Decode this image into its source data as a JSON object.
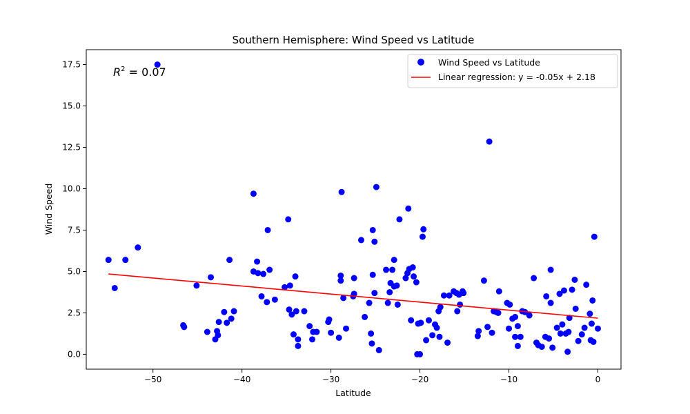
{
  "chart_data": {
    "type": "scatter",
    "title": "Southern Hemisphere: Wind Speed vs Latitude",
    "xlabel": "Latitude",
    "ylabel": "Wind Speed",
    "xlim": [
      -57.5,
      2.6
    ],
    "ylim": [
      -0.9,
      18.4
    ],
    "xticks": [
      -50,
      -40,
      -30,
      -20,
      -10,
      0
    ],
    "xtick_labels": [
      "−50",
      "−40",
      "−30",
      "−20",
      "−10",
      "0"
    ],
    "yticks": [
      0,
      2.5,
      5,
      7.5,
      10,
      12.5,
      15,
      17.5
    ],
    "ytick_labels": [
      "0.0",
      "2.5",
      "5.0",
      "7.5",
      "10.0",
      "12.5",
      "15.0",
      "17.5"
    ],
    "grid": false,
    "legend_position": "top-right",
    "annotation": {
      "prefix": "R",
      "superscript": "2",
      "suffix": " = 0.07"
    },
    "colors": {
      "points": "#0000ff",
      "regression": "#ff0000"
    },
    "series": [
      {
        "name": "Wind Speed vs Latitude",
        "type": "scatter",
        "points": [
          [
            -55.0,
            5.7
          ],
          [
            -54.3,
            4.0
          ],
          [
            -53.1,
            5.7
          ],
          [
            -51.7,
            6.45
          ],
          [
            -49.5,
            17.5
          ],
          [
            -46.6,
            1.75
          ],
          [
            -46.5,
            1.65
          ],
          [
            -45.1,
            4.15
          ],
          [
            -43.9,
            1.35
          ],
          [
            -43.5,
            4.65
          ],
          [
            -43.0,
            0.9
          ],
          [
            -42.8,
            1.4
          ],
          [
            -42.7,
            1.15
          ],
          [
            -42.6,
            1.95
          ],
          [
            -42.0,
            2.55
          ],
          [
            -41.7,
            1.9
          ],
          [
            -41.4,
            5.7
          ],
          [
            -41.2,
            2.15
          ],
          [
            -40.9,
            2.6
          ],
          [
            -38.7,
            9.7
          ],
          [
            -38.7,
            5.0
          ],
          [
            -38.3,
            5.6
          ],
          [
            -38.2,
            4.9
          ],
          [
            -37.8,
            3.5
          ],
          [
            -37.6,
            4.85
          ],
          [
            -37.2,
            3.15
          ],
          [
            -37.1,
            7.5
          ],
          [
            -36.9,
            5.1
          ],
          [
            -36.3,
            3.3
          ],
          [
            -35.2,
            4.05
          ],
          [
            -34.8,
            8.15
          ],
          [
            -34.7,
            2.7
          ],
          [
            -34.6,
            4.15
          ],
          [
            -34.4,
            2.4
          ],
          [
            -34.2,
            1.2
          ],
          [
            -34.0,
            4.7
          ],
          [
            -33.9,
            2.6
          ],
          [
            -33.7,
            0.9
          ],
          [
            -33.7,
            0.5
          ],
          [
            -33.0,
            2.6
          ],
          [
            -32.4,
            1.7
          ],
          [
            -32.1,
            0.9
          ],
          [
            -32.0,
            1.35
          ],
          [
            -31.6,
            1.35
          ],
          [
            -30.3,
            1.95
          ],
          [
            -30.2,
            2.1
          ],
          [
            -30.0,
            1.3
          ],
          [
            -29.1,
            1.0
          ],
          [
            -28.9,
            4.75
          ],
          [
            -28.9,
            4.45
          ],
          [
            -28.8,
            9.8
          ],
          [
            -28.6,
            3.4
          ],
          [
            -28.3,
            1.55
          ],
          [
            -27.5,
            3.5
          ],
          [
            -27.4,
            3.65
          ],
          [
            -27.4,
            4.6
          ],
          [
            -26.6,
            6.9
          ],
          [
            -26.2,
            2.25
          ],
          [
            -25.7,
            3.1
          ],
          [
            -25.5,
            1.25
          ],
          [
            -25.4,
            0.65
          ],
          [
            -25.3,
            7.5
          ],
          [
            -25.3,
            4.8
          ],
          [
            -25.1,
            6.8
          ],
          [
            -25.1,
            3.7
          ],
          [
            -24.9,
            10.1
          ],
          [
            -24.6,
            0.25
          ],
          [
            -23.8,
            5.1
          ],
          [
            -23.6,
            3.1
          ],
          [
            -23.4,
            3.75
          ],
          [
            -23.3,
            4.3
          ],
          [
            -23.1,
            5.1
          ],
          [
            -22.9,
            5.7
          ],
          [
            -22.9,
            4.1
          ],
          [
            -22.6,
            4.15
          ],
          [
            -22.5,
            3.0
          ],
          [
            -22.3,
            8.15
          ],
          [
            -21.6,
            4.6
          ],
          [
            -21.4,
            4.9
          ],
          [
            -21.3,
            8.8
          ],
          [
            -21.2,
            5.15
          ],
          [
            -21.0,
            2.05
          ],
          [
            -20.8,
            5.25
          ],
          [
            -20.7,
            4.7
          ],
          [
            -20.4,
            4.35
          ],
          [
            -20.3,
            0.0
          ],
          [
            -20.2,
            1.85
          ],
          [
            -20.0,
            0.0
          ],
          [
            -19.9,
            1.9
          ],
          [
            -19.7,
            7.1
          ],
          [
            -19.6,
            7.55
          ],
          [
            -19.3,
            0.85
          ],
          [
            -19.0,
            2.05
          ],
          [
            -18.6,
            1.15
          ],
          [
            -18.3,
            1.8
          ],
          [
            -18.1,
            1.6
          ],
          [
            -17.9,
            2.6
          ],
          [
            -17.8,
            1.05
          ],
          [
            -17.7,
            2.85
          ],
          [
            -17.3,
            3.55
          ],
          [
            -16.9,
            0.7
          ],
          [
            -16.7,
            3.55
          ],
          [
            -16.2,
            3.8
          ],
          [
            -15.9,
            3.7
          ],
          [
            -15.8,
            2.6
          ],
          [
            -15.6,
            3.6
          ],
          [
            -15.5,
            3.0
          ],
          [
            -15.2,
            3.8
          ],
          [
            -15.1,
            3.7
          ],
          [
            -13.5,
            1.1
          ],
          [
            -13.4,
            1.4
          ],
          [
            -12.8,
            4.45
          ],
          [
            -12.4,
            1.65
          ],
          [
            -12.2,
            12.85
          ],
          [
            -11.9,
            1.3
          ],
          [
            -11.7,
            2.6
          ],
          [
            -11.4,
            2.55
          ],
          [
            -11.1,
            3.8
          ],
          [
            -11.2,
            2.5
          ],
          [
            -10.2,
            3.1
          ],
          [
            -10.0,
            1.55
          ],
          [
            -9.9,
            3.0
          ],
          [
            -9.6,
            2.15
          ],
          [
            -9.3,
            2.25
          ],
          [
            -9.3,
            1.05
          ],
          [
            -9.0,
            0.5
          ],
          [
            -9.0,
            1.7
          ],
          [
            -8.7,
            1.05
          ],
          [
            -8.5,
            2.6
          ],
          [
            -8.2,
            2.55
          ],
          [
            -7.7,
            2.35
          ],
          [
            -7.2,
            4.6
          ],
          [
            -6.9,
            0.7
          ],
          [
            -6.7,
            0.55
          ],
          [
            -6.3,
            0.45
          ],
          [
            -5.9,
            1.05
          ],
          [
            -5.8,
            3.5
          ],
          [
            -5.5,
            0.95
          ],
          [
            -5.3,
            5.1
          ],
          [
            -5.3,
            3.1
          ],
          [
            -5.1,
            0.4
          ],
          [
            -4.6,
            1.6
          ],
          [
            -4.3,
            3.65
          ],
          [
            -4.2,
            1.25
          ],
          [
            -4.0,
            1.8
          ],
          [
            -3.8,
            3.85
          ],
          [
            -3.6,
            1.25
          ],
          [
            -3.4,
            0.15
          ],
          [
            -3.3,
            1.35
          ],
          [
            -3.2,
            2.2
          ],
          [
            -2.9,
            3.9
          ],
          [
            -2.6,
            4.5
          ],
          [
            -2.5,
            2.75
          ],
          [
            -2.2,
            0.8
          ],
          [
            -1.8,
            1.2
          ],
          [
            -1.5,
            1.6
          ],
          [
            -1.3,
            4.2
          ],
          [
            -0.9,
            2.45
          ],
          [
            -0.8,
            0.85
          ],
          [
            -0.7,
            1.85
          ],
          [
            -0.6,
            3.25
          ],
          [
            -0.5,
            0.75
          ],
          [
            -0.4,
            7.1
          ],
          [
            0.0,
            1.55
          ]
        ]
      },
      {
        "name": "Linear regression: y = -0.05x + 2.18",
        "type": "line",
        "x": [
          -55.0,
          0.0
        ],
        "y": [
          4.85,
          2.18
        ]
      }
    ]
  }
}
